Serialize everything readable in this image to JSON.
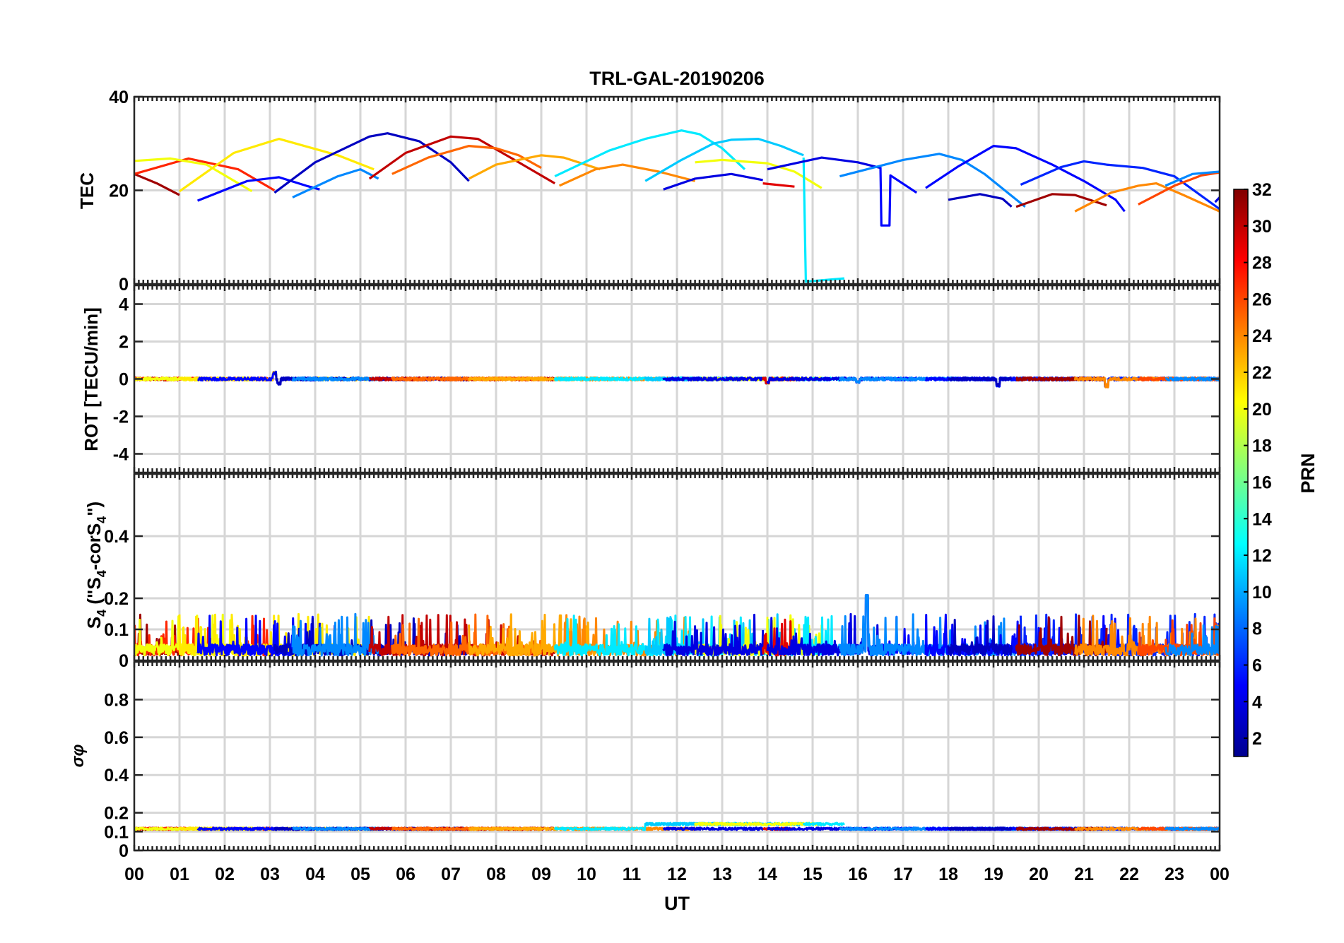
{
  "title": "TRL-GAL-20190206",
  "xaxis": {
    "label": "UT",
    "ticks": [
      "00",
      "01",
      "02",
      "03",
      "04",
      "05",
      "06",
      "07",
      "08",
      "09",
      "10",
      "11",
      "12",
      "13",
      "14",
      "15",
      "16",
      "17",
      "18",
      "19",
      "20",
      "21",
      "22",
      "23",
      "00"
    ],
    "range": [
      0,
      24
    ]
  },
  "colorbar": {
    "label": "PRN",
    "range": [
      1,
      32
    ],
    "ticks": [
      "2",
      "4",
      "6",
      "8",
      "10",
      "12",
      "14",
      "16",
      "18",
      "20",
      "22",
      "24",
      "26",
      "28",
      "30",
      "32"
    ]
  },
  "chart_data": [
    {
      "type": "line",
      "panel": "tec",
      "ylabel": "TEC",
      "ylim": [
        0,
        40
      ],
      "yticks": [
        "0",
        "20",
        "40"
      ],
      "ytick_values": [
        0,
        20,
        40
      ],
      "grid_values": [
        20
      ],
      "series": [
        {
          "prn": 31,
          "points": [
            [
              0,
              23.5
            ],
            [
              0.5,
              21.5
            ],
            [
              1.0,
              19
            ]
          ]
        },
        {
          "prn": 27,
          "points": [
            [
              0,
              23.5
            ],
            [
              1.2,
              26.8
            ],
            [
              2.3,
              24.5
            ],
            [
              3.1,
              20
            ]
          ]
        },
        {
          "prn": 20,
          "points": [
            [
              0,
              26.3
            ],
            [
              0.8,
              26.8
            ],
            [
              1.6,
              25.5
            ],
            [
              2.6,
              19.8
            ]
          ]
        },
        {
          "prn": 21,
          "points": [
            [
              1.0,
              19.8
            ],
            [
              2.2,
              28
            ],
            [
              3.2,
              31
            ],
            [
              4.5,
              27.5
            ],
            [
              5.3,
              24.5
            ]
          ]
        },
        {
          "prn": 5,
          "points": [
            [
              1.4,
              17.8
            ],
            [
              2.5,
              22
            ],
            [
              3.2,
              22.8
            ],
            [
              3.8,
              21
            ],
            [
              4.1,
              20.2
            ]
          ]
        },
        {
          "prn": 3,
          "points": [
            [
              3.1,
              19.5
            ],
            [
              4.0,
              26
            ],
            [
              5.2,
              31.5
            ],
            [
              5.6,
              32.2
            ],
            [
              6.3,
              30.5
            ],
            [
              7.0,
              26
            ],
            [
              7.4,
              22
            ]
          ]
        },
        {
          "prn": 9,
          "points": [
            [
              3.5,
              18.5
            ],
            [
              4.5,
              23
            ],
            [
              5.0,
              24.5
            ],
            [
              5.4,
              22.5
            ]
          ]
        },
        {
          "prn": 30,
          "points": [
            [
              5.2,
              22.5
            ],
            [
              6.0,
              28
            ],
            [
              7.0,
              31.5
            ],
            [
              7.6,
              31
            ],
            [
              8.5,
              26
            ],
            [
              9.3,
              21.5
            ]
          ]
        },
        {
          "prn": 25,
          "points": [
            [
              5.7,
              23.5
            ],
            [
              6.5,
              27
            ],
            [
              7.4,
              29.5
            ],
            [
              8.0,
              29
            ],
            [
              8.5,
              27.5
            ],
            [
              9.0,
              24.8
            ]
          ]
        },
        {
          "prn": 23,
          "points": [
            [
              7.4,
              22.5
            ],
            [
              8.0,
              25.5
            ],
            [
              9.0,
              27.5
            ],
            [
              9.5,
              27
            ],
            [
              10.3,
              24.5
            ]
          ]
        },
        {
          "prn": 24,
          "points": [
            [
              9.4,
              21
            ],
            [
              10.2,
              24.5
            ],
            [
              10.8,
              25.5
            ],
            [
              11.6,
              24
            ],
            [
              12.4,
              22
            ]
          ]
        },
        {
          "prn": 12,
          "points": [
            [
              9.3,
              23
            ],
            [
              10.5,
              28.5
            ],
            [
              11.3,
              31
            ],
            [
              12.1,
              32.8
            ],
            [
              12.5,
              32
            ],
            [
              13.0,
              29
            ],
            [
              13.5,
              24.5
            ]
          ]
        },
        {
          "prn": 11,
          "points": [
            [
              11.3,
              22
            ],
            [
              12.1,
              26.5
            ],
            [
              12.8,
              30
            ],
            [
              13.2,
              30.8
            ],
            [
              13.8,
              31
            ],
            [
              14.3,
              29.5
            ],
            [
              14.8,
              27.5
            ]
          ]
        },
        {
          "prn": 20,
          "points": [
            [
              12.4,
              26
            ],
            [
              13.0,
              26.5
            ],
            [
              14.0,
              25.8
            ],
            [
              14.6,
              24
            ],
            [
              15.2,
              20.5
            ]
          ]
        },
        {
          "prn": 4,
          "points": [
            [
              11.7,
              20.2
            ],
            [
              12.4,
              22.5
            ],
            [
              13.2,
              23.5
            ],
            [
              13.9,
              22.2
            ]
          ]
        },
        {
          "prn": 29,
          "points": [
            [
              13.9,
              21.5
            ],
            [
              14.6,
              20.8
            ]
          ]
        },
        {
          "prn": 12,
          "points": [
            [
              14.8,
              27
            ],
            [
              14.85,
              0.5
            ],
            [
              15.7,
              1.2
            ]
          ]
        },
        {
          "prn": 4,
          "points": [
            [
              14.0,
              24.5
            ],
            [
              15.2,
              27
            ],
            [
              16.0,
              26
            ],
            [
              16.5,
              24.8
            ]
          ]
        },
        {
          "prn": 5,
          "points": [
            [
              16.5,
              25
            ],
            [
              16.52,
              12.5
            ],
            [
              16.7,
              12.5
            ],
            [
              16.72,
              23.2
            ],
            [
              17.3,
              19.5
            ]
          ]
        },
        {
          "prn": 9,
          "points": [
            [
              15.6,
              23
            ],
            [
              16.2,
              24.5
            ],
            [
              17.0,
              26.5
            ],
            [
              17.8,
              27.8
            ],
            [
              18.3,
              26.5
            ],
            [
              18.8,
              23.5
            ],
            [
              19.7,
              16.5
            ]
          ]
        },
        {
          "prn": 5,
          "points": [
            [
              17.5,
              20.5
            ],
            [
              18.2,
              25
            ],
            [
              19.0,
              29.5
            ],
            [
              19.5,
              29
            ],
            [
              20.3,
              25.5
            ],
            [
              21.0,
              22
            ],
            [
              21.7,
              18
            ],
            [
              21.9,
              15.5
            ]
          ]
        },
        {
          "prn": 3,
          "points": [
            [
              18.0,
              18
            ],
            [
              18.7,
              19.2
            ],
            [
              19.2,
              18.2
            ],
            [
              19.4,
              16.5
            ]
          ]
        },
        {
          "prn": 6,
          "points": [
            [
              19.6,
              21.2
            ],
            [
              20.5,
              25
            ],
            [
              21.0,
              26.2
            ],
            [
              21.5,
              25.5
            ],
            [
              22.3,
              24.8
            ],
            [
              23.0,
              23
            ],
            [
              24.0,
              16
            ]
          ]
        },
        {
          "prn": 31,
          "points": [
            [
              19.5,
              16.5
            ],
            [
              20.3,
              19.2
            ],
            [
              20.8,
              19
            ],
            [
              21.5,
              16.8
            ]
          ]
        },
        {
          "prn": 24,
          "points": [
            [
              20.8,
              15.5
            ],
            [
              21.6,
              19.5
            ],
            [
              22.2,
              21
            ],
            [
              22.6,
              21.5
            ],
            [
              23.2,
              19
            ],
            [
              24.0,
              15.5
            ]
          ]
        },
        {
          "prn": 26,
          "points": [
            [
              22.2,
              17
            ],
            [
              23.0,
              21
            ],
            [
              23.6,
              23.2
            ],
            [
              24.0,
              23.8
            ]
          ]
        },
        {
          "prn": 9,
          "points": [
            [
              22.8,
              21
            ],
            [
              23.4,
              23.5
            ],
            [
              24.0,
              24
            ]
          ]
        },
        {
          "prn": 4,
          "points": [
            [
              23.9,
              17.5
            ],
            [
              24.0,
              18.5
            ]
          ]
        }
      ]
    },
    {
      "type": "line",
      "panel": "rot",
      "ylabel": "ROT [TECU/min]",
      "ylim": [
        -5,
        5
      ],
      "yticks": [
        "-4",
        "-2",
        "0",
        "2",
        "4"
      ],
      "ytick_values": [
        -4,
        -2,
        0,
        2,
        4
      ],
      "grid_values": [
        -4,
        -2,
        0,
        2,
        4
      ],
      "noise_amplitude": 0.08,
      "spikes": [
        [
          3.1,
          0.4
        ],
        [
          3.2,
          -0.3
        ],
        [
          14.0,
          -0.25
        ],
        [
          19.1,
          -0.45
        ],
        [
          21.5,
          -0.45
        ],
        [
          16.0,
          -0.2
        ]
      ]
    },
    {
      "type": "line",
      "panel": "s4",
      "ylabel": "S4 (\"S4-corS4\")",
      "ylabel_parts": {
        "S": "S",
        "sub4": "4",
        "mid": " (\"S",
        "sub4b": "4",
        "mid2": "-corS",
        "sub4c": "4",
        "end": "\")"
      },
      "ylim": [
        0,
        0.6
      ],
      "yticks": [
        "0",
        "0.1",
        "0.2",
        "0.4"
      ],
      "ytick_values": [
        0,
        0.1,
        0.2,
        0.4
      ],
      "grid_values": [
        0.1,
        0.2,
        0.4
      ],
      "base_level": 0.04,
      "peak_level": 0.15,
      "max_spike": [
        16.2,
        0.21
      ]
    },
    {
      "type": "line",
      "panel": "sigma_phi",
      "ylabel": "σφ",
      "ylim": [
        0,
        1
      ],
      "yticks": [
        "0",
        "0.1",
        "0.2",
        "0.4",
        "0.6",
        "0.8"
      ],
      "ytick_values": [
        0,
        0.1,
        0.2,
        0.4,
        0.6,
        0.8
      ],
      "grid_values": [
        0.1,
        0.2,
        0.4,
        0.6,
        0.8
      ],
      "base_level": 0.115,
      "bump": [
        [
          11.3,
          15.7,
          0.14
        ]
      ]
    }
  ]
}
